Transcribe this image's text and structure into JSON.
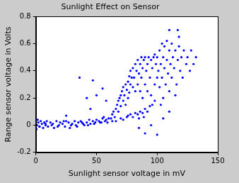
{
  "chart_data": {
    "type": "scatter",
    "title": "Sunlight Effect on Sensor",
    "x_label": "Sunlight sensor voltage in mV",
    "y_label": "Range sensor voltage in Volts",
    "color": "#0000ff",
    "marker": "point",
    "grid": false,
    "xlim": [
      0,
      150
    ],
    "xticks": [
      0,
      50,
      100,
      150
    ],
    "ylim": [
      -0.2,
      0.8
    ],
    "yticks": [
      -0.2,
      0,
      0.2,
      0.4,
      0.6,
      0.8
    ],
    "x": [
      1,
      2,
      3,
      4,
      5,
      6,
      7,
      8,
      9,
      10,
      12,
      14,
      15,
      17,
      19,
      20,
      22,
      24,
      25,
      27,
      29,
      30,
      32,
      34,
      35,
      37,
      39,
      40,
      42,
      44,
      45,
      47,
      49,
      50,
      52,
      54,
      55,
      57,
      58,
      60,
      3,
      8,
      13,
      18,
      23,
      28,
      33,
      38,
      43,
      48,
      53,
      56,
      59,
      0,
      0,
      0,
      0.5,
      1.5,
      36,
      42,
      47,
      50,
      55,
      58,
      45,
      25,
      62,
      63,
      64,
      65,
      66,
      67,
      68,
      68,
      69,
      70,
      70,
      71,
      72,
      72,
      73,
      74,
      74,
      75,
      76,
      76,
      77,
      77,
      78,
      78,
      79,
      80,
      80,
      66,
      70,
      72,
      75,
      63,
      76,
      78,
      80,
      82,
      84,
      86,
      88,
      90,
      92,
      94,
      96,
      98,
      85,
      89,
      81,
      82,
      82,
      83,
      84,
      84,
      85,
      86,
      86,
      87,
      87,
      88,
      88,
      89,
      90,
      90,
      91,
      92,
      92,
      93,
      94,
      95,
      95,
      96,
      97,
      98,
      98,
      99,
      100,
      100,
      101,
      102,
      102,
      103,
      104,
      104,
      105,
      106,
      106,
      107,
      108,
      108,
      109,
      110,
      110,
      111,
      112,
      112,
      113,
      114,
      115,
      116,
      117,
      118,
      119,
      120,
      121,
      122,
      124,
      125,
      127,
      130,
      132,
      128,
      105,
      115,
      118,
      110,
      117,
      103,
      90,
      100,
      95,
      105,
      85,
      110
    ],
    "values": [
      0.0,
      0.02,
      -0.01,
      0.03,
      0.01,
      -0.02,
      0.02,
      0.0,
      0.03,
      -0.01,
      0.02,
      0.01,
      -0.02,
      0.03,
      0.0,
      0.02,
      0.01,
      -0.01,
      0.03,
      0.02,
      0.0,
      0.01,
      0.03,
      -0.01,
      0.02,
      0.03,
      0.01,
      0.0,
      0.02,
      0.04,
      0.01,
      0.03,
      0.02,
      0.04,
      0.03,
      0.02,
      0.05,
      0.03,
      0.04,
      0.05,
      -0.01,
      0.01,
      0.0,
      -0.01,
      0.03,
      -0.02,
      0.0,
      0.02,
      0.0,
      0.01,
      0.02,
      0.06,
      0.02,
      0.01,
      -0.02,
      0.03,
      -0.03,
      0.04,
      0.35,
      0.2,
      0.33,
      0.22,
      0.27,
      0.18,
      0.12,
      0.07,
      0.05,
      0.08,
      0.1,
      0.06,
      0.12,
      0.15,
      0.1,
      0.18,
      0.2,
      0.14,
      0.22,
      0.25,
      0.18,
      0.28,
      0.22,
      0.3,
      0.15,
      0.26,
      0.32,
      0.2,
      0.36,
      0.24,
      0.3,
      0.4,
      0.35,
      0.28,
      0.42,
      0.03,
      0.05,
      0.04,
      0.06,
      0.03,
      0.07,
      0.08,
      0.06,
      0.09,
      0.08,
      0.1,
      0.09,
      0.12,
      0.1,
      0.14,
      0.15,
      0.18,
      0.05,
      0.06,
      0.35,
      0.45,
      0.25,
      0.4,
      0.3,
      0.48,
      0.38,
      0.45,
      0.25,
      0.5,
      0.35,
      0.42,
      0.2,
      0.48,
      0.3,
      0.5,
      0.4,
      0.45,
      0.25,
      0.5,
      0.35,
      0.48,
      0.22,
      0.42,
      0.5,
      0.3,
      0.52,
      0.45,
      0.35,
      0.5,
      0.4,
      0.55,
      0.28,
      0.45,
      0.6,
      0.35,
      0.5,
      0.42,
      0.58,
      0.3,
      0.48,
      0.62,
      0.38,
      0.55,
      0.25,
      0.45,
      0.6,
      0.35,
      0.5,
      0.42,
      0.55,
      0.3,
      0.48,
      0.58,
      0.4,
      0.5,
      0.35,
      0.55,
      0.45,
      0.5,
      0.4,
      0.45,
      0.5,
      0.55,
      0.2,
      0.22,
      0.65,
      0.7,
      0.7,
      0.15,
      -0.06,
      -0.07,
      0.0,
      0.05,
      -0.02,
      0.1
    ]
  }
}
